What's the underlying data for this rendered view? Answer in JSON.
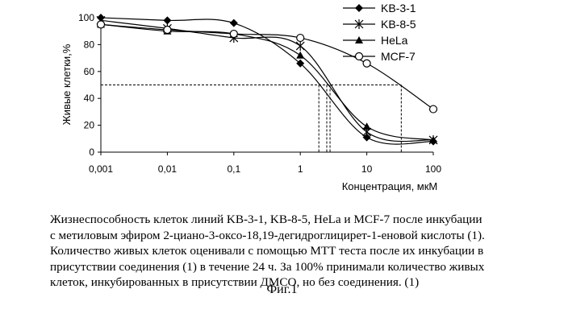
{
  "chart_data": {
    "type": "line",
    "xscale": "log",
    "x": [
      0.001,
      0.01,
      0.1,
      1,
      10,
      100
    ],
    "x_tick_labels": [
      "0,001",
      "0,01",
      "0,1",
      "1",
      "10",
      "100"
    ],
    "xlabel": "Концентрация, мкМ",
    "ylabel": "Живые клетки,%",
    "ylim": [
      0,
      100
    ],
    "y_ticks": [
      0,
      20,
      40,
      60,
      80,
      100
    ],
    "y_tick_labels": [
      "0",
      "20",
      "40",
      "60",
      "80",
      "100"
    ],
    "legend_position": "top-right",
    "series": [
      {
        "name": "KB-3-1",
        "marker": "diamond",
        "values": [
          100,
          98,
          96,
          66,
          11,
          8
        ]
      },
      {
        "name": "KB-8-5",
        "marker": "star",
        "values": [
          98,
          92,
          85,
          79,
          15,
          9
        ]
      },
      {
        "name": "HeLa",
        "marker": "triangle",
        "values": [
          95,
          90,
          88,
          72,
          19,
          9
        ]
      },
      {
        "name": "MCF-7",
        "marker": "circle",
        "values": [
          95,
          91,
          88,
          85,
          66,
          32
        ]
      }
    ],
    "reference": {
      "y": 50,
      "x_drops": [
        1.9,
        2.5,
        2.8,
        33
      ]
    }
  },
  "caption": {
    "lines": [
      "Жизнеспособность клеток линий KB-3-1, KB-8-5, HeLa и MCF-7 после инкубации",
      "с метиловым эфиром 2-циано-3-оксо-18,19-дегидроглицирет-1-еновой кислоты (1).",
      "Количество живых клеток оценивали с помощью МТТ теста после их инкубации в",
      "присутствии соединения (1) в течение 24 ч. За 100% принимали количество живых",
      "клеток, инкубированных в присутствии ДМСО, но без соединения. (1)"
    ]
  },
  "figure_label": "Фиг.1"
}
